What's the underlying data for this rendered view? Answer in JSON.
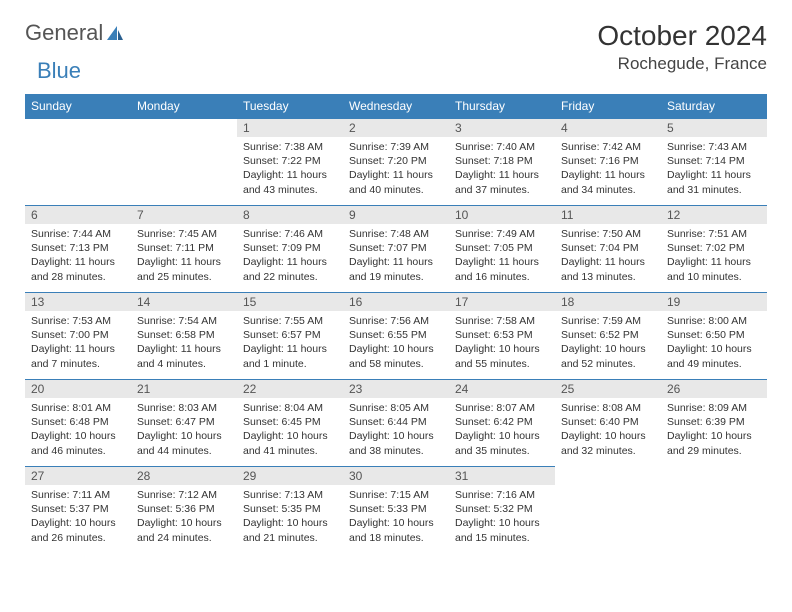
{
  "logo": {
    "part1": "General",
    "part2": "Blue"
  },
  "title": "October 2024",
  "location": "Rochegude, France",
  "colors": {
    "header_bg": "#3a7fb8",
    "header_text": "#ffffff",
    "daynum_bg": "#e8e8e8",
    "border": "#3a7fb8"
  },
  "dayNames": [
    "Sunday",
    "Monday",
    "Tuesday",
    "Wednesday",
    "Thursday",
    "Friday",
    "Saturday"
  ],
  "weeks": [
    [
      null,
      null,
      {
        "n": "1",
        "sr": "Sunrise: 7:38 AM",
        "ss": "Sunset: 7:22 PM",
        "dl": "Daylight: 11 hours and 43 minutes."
      },
      {
        "n": "2",
        "sr": "Sunrise: 7:39 AM",
        "ss": "Sunset: 7:20 PM",
        "dl": "Daylight: 11 hours and 40 minutes."
      },
      {
        "n": "3",
        "sr": "Sunrise: 7:40 AM",
        "ss": "Sunset: 7:18 PM",
        "dl": "Daylight: 11 hours and 37 minutes."
      },
      {
        "n": "4",
        "sr": "Sunrise: 7:42 AM",
        "ss": "Sunset: 7:16 PM",
        "dl": "Daylight: 11 hours and 34 minutes."
      },
      {
        "n": "5",
        "sr": "Sunrise: 7:43 AM",
        "ss": "Sunset: 7:14 PM",
        "dl": "Daylight: 11 hours and 31 minutes."
      }
    ],
    [
      {
        "n": "6",
        "sr": "Sunrise: 7:44 AM",
        "ss": "Sunset: 7:13 PM",
        "dl": "Daylight: 11 hours and 28 minutes."
      },
      {
        "n": "7",
        "sr": "Sunrise: 7:45 AM",
        "ss": "Sunset: 7:11 PM",
        "dl": "Daylight: 11 hours and 25 minutes."
      },
      {
        "n": "8",
        "sr": "Sunrise: 7:46 AM",
        "ss": "Sunset: 7:09 PM",
        "dl": "Daylight: 11 hours and 22 minutes."
      },
      {
        "n": "9",
        "sr": "Sunrise: 7:48 AM",
        "ss": "Sunset: 7:07 PM",
        "dl": "Daylight: 11 hours and 19 minutes."
      },
      {
        "n": "10",
        "sr": "Sunrise: 7:49 AM",
        "ss": "Sunset: 7:05 PM",
        "dl": "Daylight: 11 hours and 16 minutes."
      },
      {
        "n": "11",
        "sr": "Sunrise: 7:50 AM",
        "ss": "Sunset: 7:04 PM",
        "dl": "Daylight: 11 hours and 13 minutes."
      },
      {
        "n": "12",
        "sr": "Sunrise: 7:51 AM",
        "ss": "Sunset: 7:02 PM",
        "dl": "Daylight: 11 hours and 10 minutes."
      }
    ],
    [
      {
        "n": "13",
        "sr": "Sunrise: 7:53 AM",
        "ss": "Sunset: 7:00 PM",
        "dl": "Daylight: 11 hours and 7 minutes."
      },
      {
        "n": "14",
        "sr": "Sunrise: 7:54 AM",
        "ss": "Sunset: 6:58 PM",
        "dl": "Daylight: 11 hours and 4 minutes."
      },
      {
        "n": "15",
        "sr": "Sunrise: 7:55 AM",
        "ss": "Sunset: 6:57 PM",
        "dl": "Daylight: 11 hours and 1 minute."
      },
      {
        "n": "16",
        "sr": "Sunrise: 7:56 AM",
        "ss": "Sunset: 6:55 PM",
        "dl": "Daylight: 10 hours and 58 minutes."
      },
      {
        "n": "17",
        "sr": "Sunrise: 7:58 AM",
        "ss": "Sunset: 6:53 PM",
        "dl": "Daylight: 10 hours and 55 minutes."
      },
      {
        "n": "18",
        "sr": "Sunrise: 7:59 AM",
        "ss": "Sunset: 6:52 PM",
        "dl": "Daylight: 10 hours and 52 minutes."
      },
      {
        "n": "19",
        "sr": "Sunrise: 8:00 AM",
        "ss": "Sunset: 6:50 PM",
        "dl": "Daylight: 10 hours and 49 minutes."
      }
    ],
    [
      {
        "n": "20",
        "sr": "Sunrise: 8:01 AM",
        "ss": "Sunset: 6:48 PM",
        "dl": "Daylight: 10 hours and 46 minutes."
      },
      {
        "n": "21",
        "sr": "Sunrise: 8:03 AM",
        "ss": "Sunset: 6:47 PM",
        "dl": "Daylight: 10 hours and 44 minutes."
      },
      {
        "n": "22",
        "sr": "Sunrise: 8:04 AM",
        "ss": "Sunset: 6:45 PM",
        "dl": "Daylight: 10 hours and 41 minutes."
      },
      {
        "n": "23",
        "sr": "Sunrise: 8:05 AM",
        "ss": "Sunset: 6:44 PM",
        "dl": "Daylight: 10 hours and 38 minutes."
      },
      {
        "n": "24",
        "sr": "Sunrise: 8:07 AM",
        "ss": "Sunset: 6:42 PM",
        "dl": "Daylight: 10 hours and 35 minutes."
      },
      {
        "n": "25",
        "sr": "Sunrise: 8:08 AM",
        "ss": "Sunset: 6:40 PM",
        "dl": "Daylight: 10 hours and 32 minutes."
      },
      {
        "n": "26",
        "sr": "Sunrise: 8:09 AM",
        "ss": "Sunset: 6:39 PM",
        "dl": "Daylight: 10 hours and 29 minutes."
      }
    ],
    [
      {
        "n": "27",
        "sr": "Sunrise: 7:11 AM",
        "ss": "Sunset: 5:37 PM",
        "dl": "Daylight: 10 hours and 26 minutes."
      },
      {
        "n": "28",
        "sr": "Sunrise: 7:12 AM",
        "ss": "Sunset: 5:36 PM",
        "dl": "Daylight: 10 hours and 24 minutes."
      },
      {
        "n": "29",
        "sr": "Sunrise: 7:13 AM",
        "ss": "Sunset: 5:35 PM",
        "dl": "Daylight: 10 hours and 21 minutes."
      },
      {
        "n": "30",
        "sr": "Sunrise: 7:15 AM",
        "ss": "Sunset: 5:33 PM",
        "dl": "Daylight: 10 hours and 18 minutes."
      },
      {
        "n": "31",
        "sr": "Sunrise: 7:16 AM",
        "ss": "Sunset: 5:32 PM",
        "dl": "Daylight: 10 hours and 15 minutes."
      },
      null,
      null
    ]
  ]
}
